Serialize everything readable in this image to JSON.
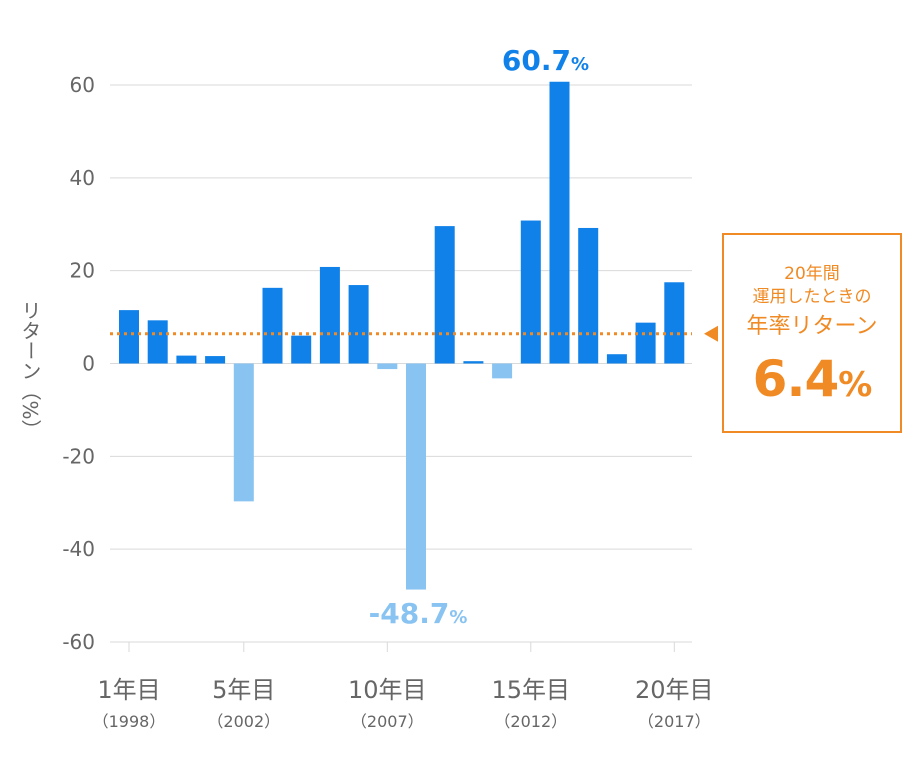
{
  "chart_data": {
    "type": "bar",
    "categories": [
      "1",
      "2",
      "3",
      "4",
      "5",
      "6",
      "7",
      "8",
      "9",
      "10",
      "11",
      "12",
      "13",
      "14",
      "15",
      "16",
      "17",
      "18",
      "19",
      "20"
    ],
    "values": [
      11.5,
      9.3,
      1.7,
      1.6,
      -29.7,
      16.3,
      6.0,
      20.8,
      16.9,
      -1.2,
      -48.7,
      29.6,
      0.5,
      -3.2,
      30.8,
      60.7,
      29.2,
      2.0,
      8.8,
      17.5
    ],
    "ylabel": "リターン（%）",
    "ylim": [
      -60,
      60
    ],
    "yticks": [
      60,
      40,
      20,
      0,
      -20,
      -40,
      -60
    ],
    "grid": true,
    "average_line": 6.4,
    "x_tick_labels": [
      {
        "index": 1,
        "label": "1年目",
        "sub": "（1998）"
      },
      {
        "index": 5,
        "label": "5年目",
        "sub": "（2002）"
      },
      {
        "index": 10,
        "label": "10年目",
        "sub": "（2007）"
      },
      {
        "index": 15,
        "label": "15年目",
        "sub": "（2012）"
      },
      {
        "index": 20,
        "label": "20年目",
        "sub": "（2017）"
      }
    ],
    "annotations": {
      "max": {
        "index": 16,
        "value": "60.7",
        "unit": "%"
      },
      "min": {
        "index": 11,
        "value": "-48.7",
        "unit": "%"
      }
    },
    "colors": {
      "positive": "#0f81e8",
      "negative": "#88c3f2",
      "average": "#f08a24",
      "grid": "#d9d9d9",
      "axis_text": "#666666"
    }
  },
  "callout": {
    "line1": "20年間",
    "line2": "運用したときの",
    "line3": "年率リターン",
    "value": "6.4",
    "unit": "%"
  }
}
